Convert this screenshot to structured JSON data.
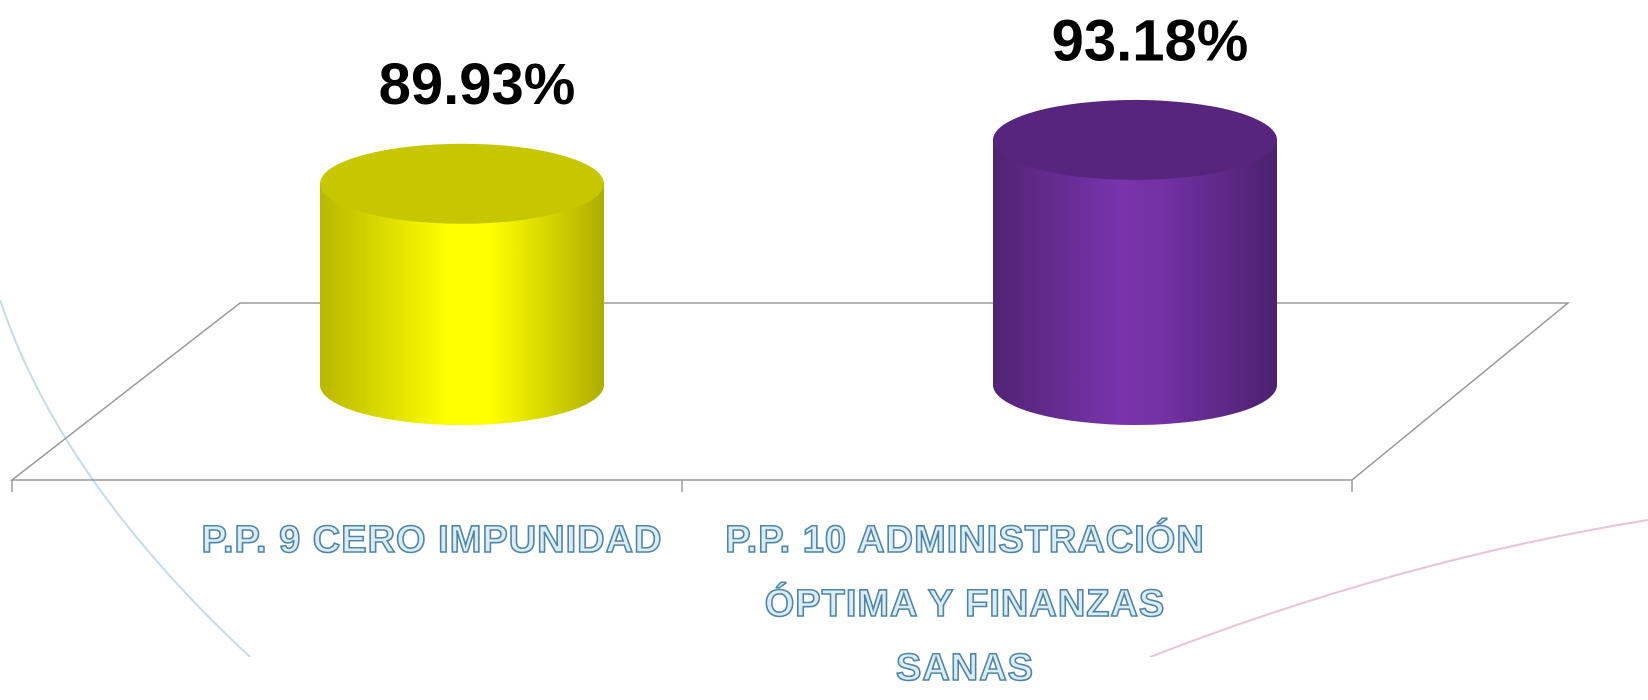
{
  "chart_data": {
    "type": "cylinder-bar",
    "categories": [
      "P.P. 9 CERO IMPUNIDAD",
      "P.P. 10 ADMINISTRACIÓN ÓPTIMA Y FINANZAS SANAS"
    ],
    "series": [
      {
        "values": [
          89.93,
          93.18
        ],
        "value_labels": [
          "89.93%",
          "93.18%"
        ],
        "colors": [
          "#ffff00",
          "#7030a0"
        ]
      }
    ],
    "ylim": [
      75,
      100
    ]
  }
}
